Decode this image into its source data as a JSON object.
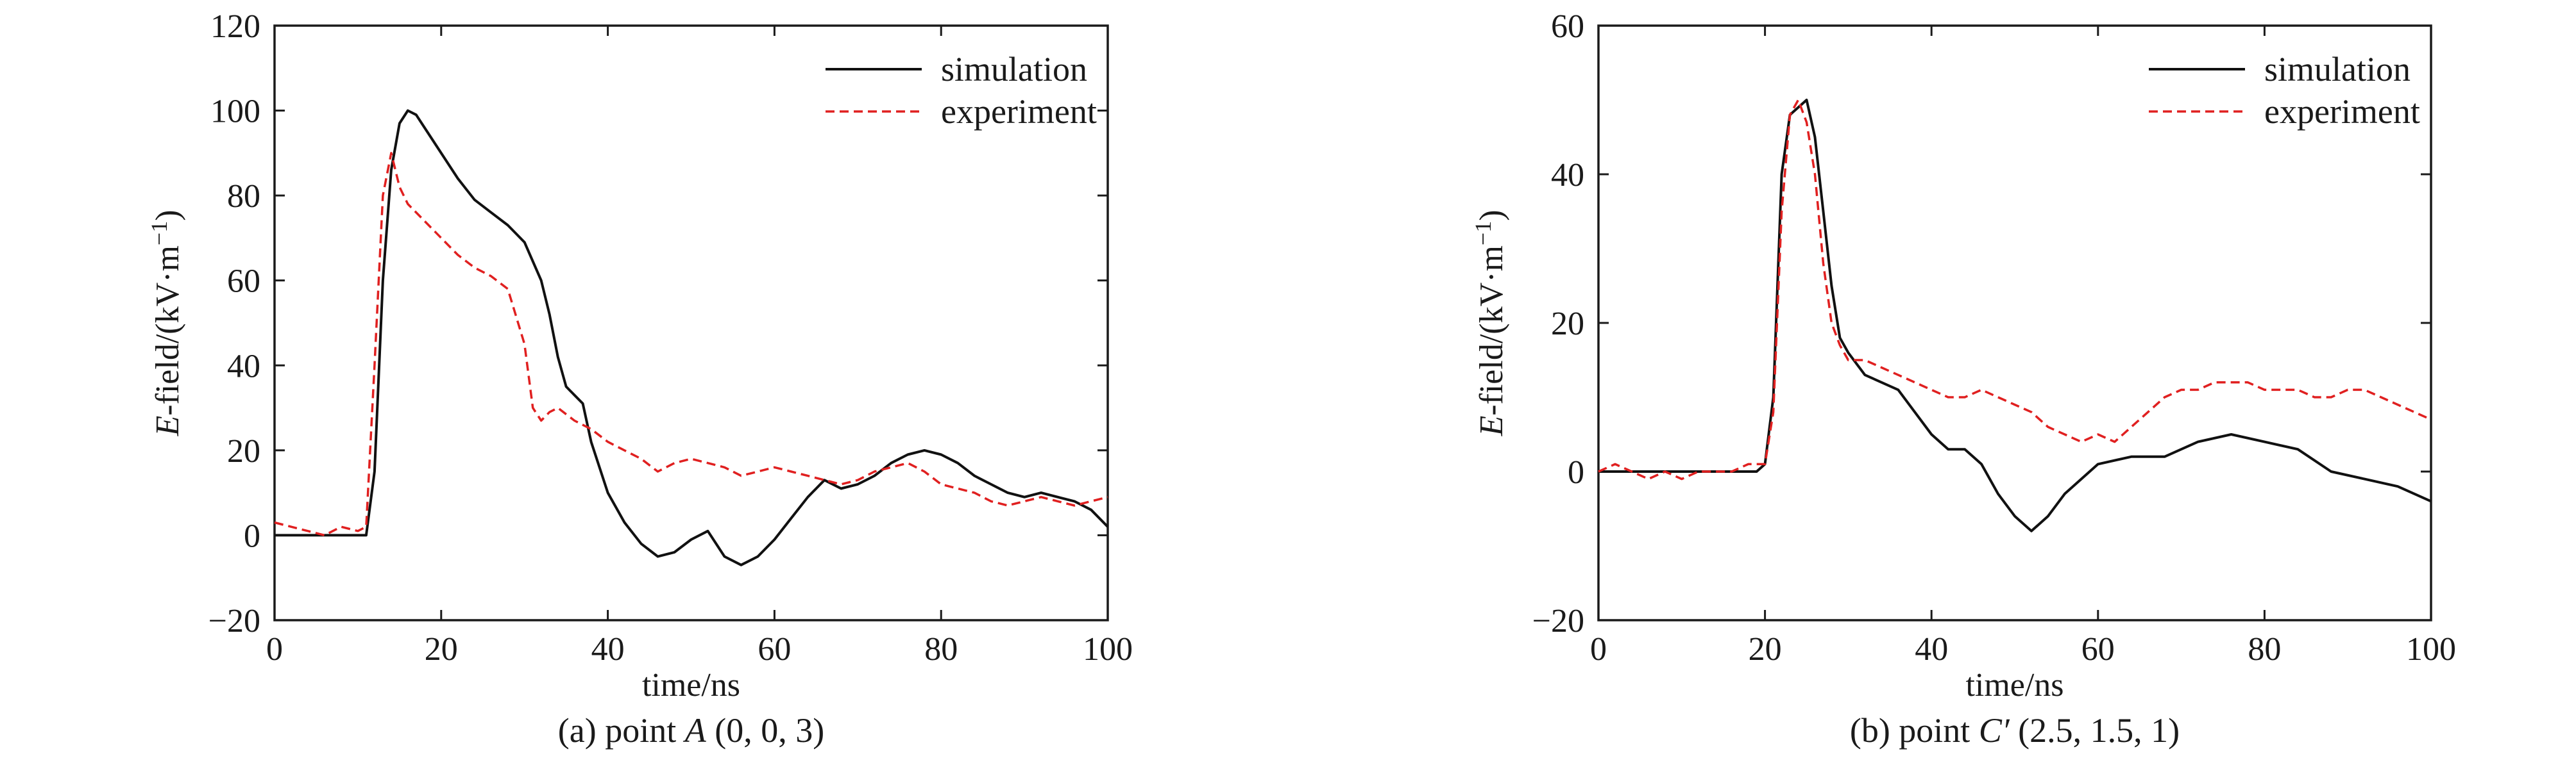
{
  "chart_data": [
    {
      "type": "line",
      "caption": {
        "prefix": "(a) point ",
        "point": "A",
        "suffix": " (0, 0, 3)"
      },
      "xlabel": "time/ns",
      "ylabel": {
        "italic": "E",
        "rest": "-field/(kV·m",
        "sup": "−1",
        "close": ")"
      },
      "xlim": [
        0,
        100
      ],
      "ylim": [
        -20,
        120
      ],
      "xticks": [
        0,
        20,
        40,
        60,
        80,
        100
      ],
      "yticks": [
        -20,
        0,
        20,
        40,
        60,
        80,
        100,
        120
      ],
      "ytick_labels": [
        "−20",
        "0",
        "20",
        "40",
        "60",
        "80",
        "100",
        "120"
      ],
      "legend": "top-right",
      "series": [
        {
          "name": "simulation",
          "color": "#111111",
          "style": "solid",
          "x": [
            0,
            10,
            11,
            12,
            13,
            14,
            15,
            16,
            17,
            18,
            20,
            22,
            24,
            26,
            28,
            30,
            32,
            33,
            34,
            35,
            36,
            37,
            38,
            40,
            42,
            44,
            46,
            48,
            50,
            52,
            54,
            56,
            58,
            60,
            62,
            64,
            66,
            68,
            70,
            72,
            74,
            76,
            78,
            80,
            82,
            84,
            86,
            88,
            90,
            92,
            94,
            96,
            98,
            100
          ],
          "y": [
            0,
            0,
            0,
            15,
            60,
            86,
            97,
            100,
            99,
            96,
            90,
            84,
            79,
            76,
            73,
            69,
            60,
            52,
            42,
            35,
            33,
            31,
            22,
            10,
            3,
            -2,
            -5,
            -4,
            -1,
            1,
            -5,
            -7,
            -5,
            -1,
            4,
            9,
            13,
            11,
            12,
            14,
            17,
            19,
            20,
            19,
            17,
            14,
            12,
            10,
            9,
            10,
            9,
            8,
            6,
            2
          ]
        },
        {
          "name": "experiment",
          "color": "#e02020",
          "style": "dashed",
          "x": [
            0,
            2,
            4,
            6,
            8,
            10,
            11,
            12,
            13,
            14,
            15,
            16,
            18,
            20,
            22,
            24,
            26,
            28,
            30,
            31,
            32,
            33,
            34,
            36,
            38,
            40,
            42,
            44,
            46,
            48,
            50,
            52,
            54,
            56,
            58,
            60,
            62,
            64,
            66,
            68,
            70,
            72,
            74,
            76,
            78,
            80,
            82,
            84,
            86,
            88,
            90,
            92,
            94,
            96,
            98,
            100
          ],
          "y": [
            3,
            2,
            1,
            0,
            2,
            1,
            2,
            40,
            80,
            90,
            82,
            78,
            74,
            70,
            66,
            63,
            61,
            58,
            45,
            30,
            27,
            29,
            30,
            27,
            25,
            22,
            20,
            18,
            15,
            17,
            18,
            17,
            16,
            14,
            15,
            16,
            15,
            14,
            13,
            12,
            13,
            15,
            16,
            17,
            15,
            12,
            11,
            10,
            8,
            7,
            8,
            9,
            8,
            7,
            8,
            9
          ]
        }
      ]
    },
    {
      "type": "line",
      "caption": {
        "prefix": "(b) point ",
        "point": "C′",
        "suffix": " (2.5, 1.5, 1)"
      },
      "xlabel": "time/ns",
      "ylabel": {
        "italic": "E",
        "rest": "-field/(kV·m",
        "sup": "−1",
        "close": ")"
      },
      "xlim": [
        0,
        100
      ],
      "ylim": [
        -20,
        60
      ],
      "xticks": [
        0,
        20,
        40,
        60,
        80,
        100
      ],
      "yticks": [
        -20,
        0,
        20,
        40,
        60
      ],
      "ytick_labels": [
        "−20",
        "0",
        "20",
        "40",
        "60"
      ],
      "legend": "top-right",
      "series": [
        {
          "name": "simulation",
          "color": "#111111",
          "style": "solid",
          "x": [
            0,
            19,
            20,
            21,
            22,
            23,
            24,
            25,
            26,
            27,
            28,
            29,
            30,
            32,
            34,
            36,
            38,
            40,
            42,
            44,
            46,
            48,
            50,
            52,
            54,
            56,
            58,
            60,
            64,
            68,
            72,
            76,
            80,
            84,
            88,
            92,
            96,
            100
          ],
          "y": [
            0,
            0,
            1,
            10,
            40,
            48,
            49,
            50,
            45,
            35,
            25,
            18,
            16,
            13,
            12,
            11,
            8,
            5,
            3,
            3,
            1,
            -3,
            -6,
            -8,
            -6,
            -3,
            -1,
            1,
            2,
            2,
            4,
            5,
            4,
            3,
            0,
            -1,
            -2,
            -4
          ]
        },
        {
          "name": "experiment",
          "color": "#e02020",
          "style": "dashed",
          "x": [
            0,
            2,
            4,
            6,
            8,
            10,
            12,
            14,
            16,
            18,
            20,
            21,
            22,
            23,
            24,
            25,
            26,
            27,
            28,
            29,
            30,
            32,
            34,
            36,
            38,
            40,
            42,
            44,
            46,
            48,
            50,
            52,
            54,
            56,
            58,
            60,
            62,
            64,
            66,
            68,
            70,
            72,
            74,
            76,
            78,
            80,
            82,
            84,
            86,
            88,
            90,
            92,
            94,
            96,
            98,
            100
          ],
          "y": [
            0,
            1,
            0,
            -1,
            0,
            -1,
            0,
            0,
            0,
            1,
            1,
            8,
            35,
            48,
            50,
            47,
            40,
            28,
            20,
            17,
            15,
            15,
            14,
            13,
            12,
            11,
            10,
            10,
            11,
            10,
            9,
            8,
            6,
            5,
            4,
            5,
            4,
            6,
            8,
            10,
            11,
            11,
            12,
            12,
            12,
            11,
            11,
            11,
            10,
            10,
            11,
            11,
            10,
            9,
            8,
            7
          ]
        }
      ]
    }
  ]
}
